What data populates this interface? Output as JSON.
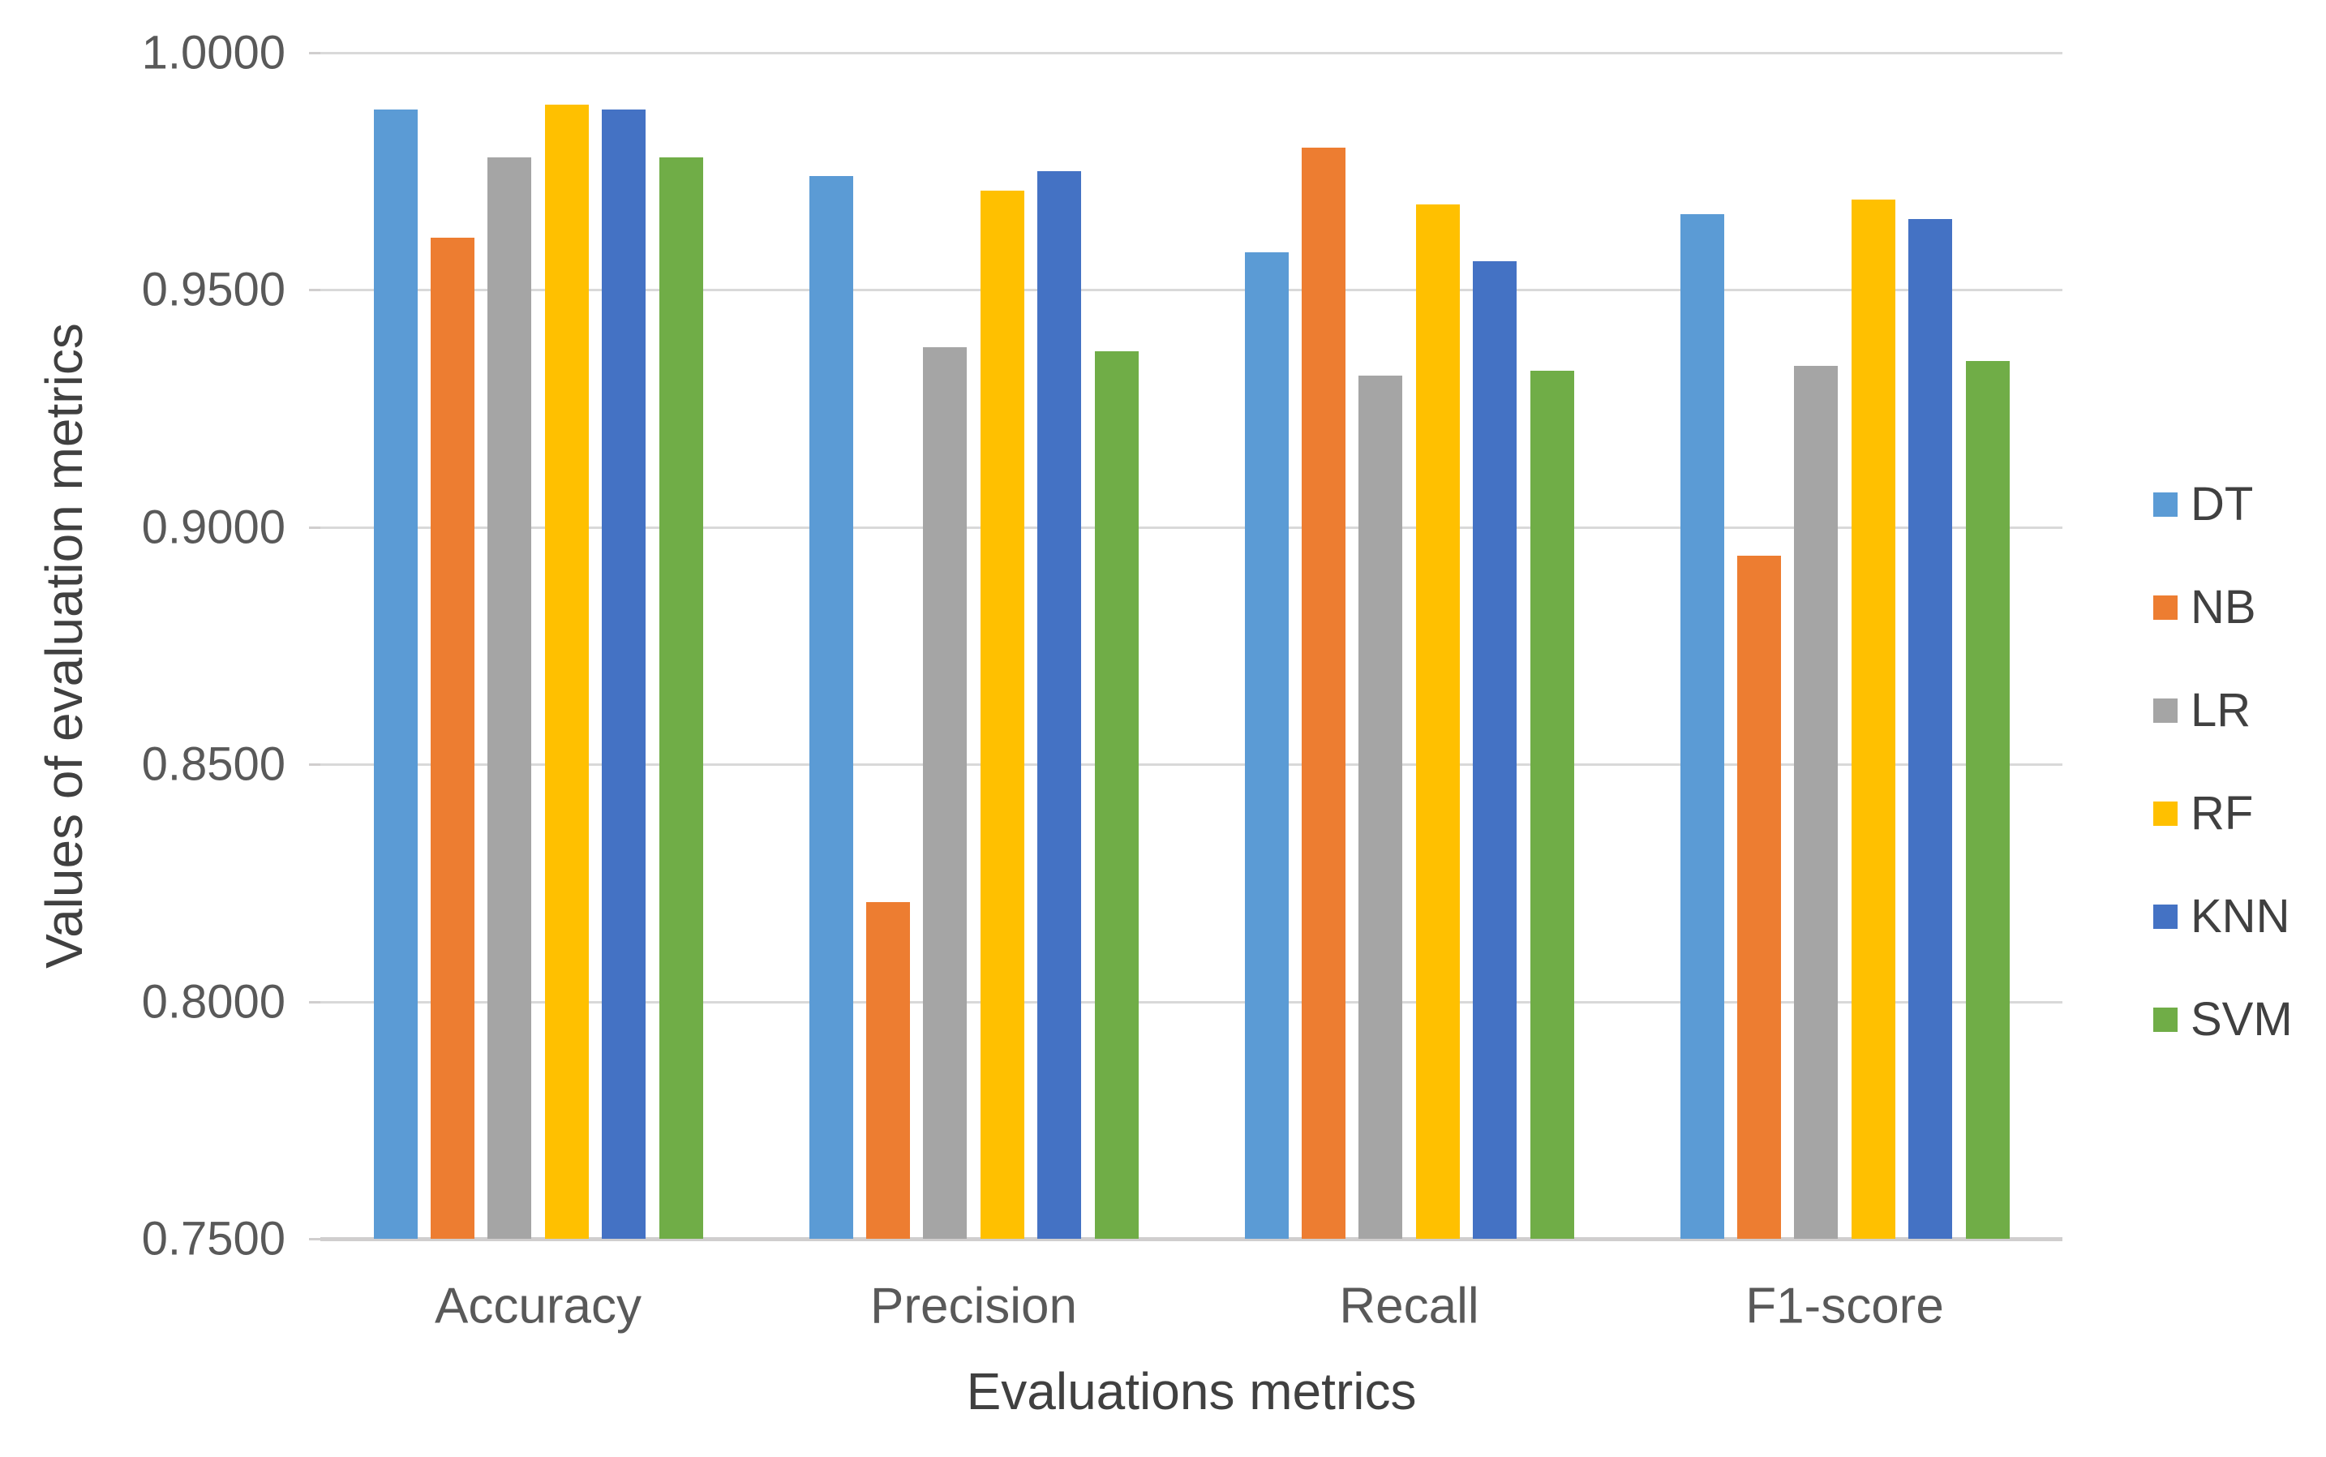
{
  "chart_data": {
    "type": "bar",
    "title": "",
    "xlabel": "Evaluations metrics",
    "ylabel": "Values of evaluation metrics",
    "categories": [
      "Accuracy",
      "Precision",
      "Recall",
      "F1-score"
    ],
    "series": [
      {
        "name": "DT",
        "color": "#5B9BD5",
        "values": [
          0.988,
          0.974,
          0.958,
          0.966
        ]
      },
      {
        "name": "NB",
        "color": "#ED7D31",
        "values": [
          0.961,
          0.821,
          0.98,
          0.894
        ]
      },
      {
        "name": "LR",
        "color": "#A5A5A5",
        "values": [
          0.978,
          0.938,
          0.932,
          0.934
        ]
      },
      {
        "name": "RF",
        "color": "#FFC000",
        "values": [
          0.989,
          0.971,
          0.968,
          0.969
        ]
      },
      {
        "name": "KNN",
        "color": "#4472C4",
        "values": [
          0.988,
          0.975,
          0.956,
          0.965
        ]
      },
      {
        "name": "SVM",
        "color": "#70AD47",
        "values": [
          0.978,
          0.937,
          0.933,
          0.935
        ]
      }
    ],
    "ylim": [
      0.75,
      1.0
    ],
    "ytick_step": 0.05,
    "ytick_labels": [
      "1.0000",
      "0.9500",
      "0.9000",
      "0.8500",
      "0.8000",
      "0.7500"
    ],
    "grid": true,
    "legend_position": "right"
  },
  "colors": {
    "gridline": "#D9D9D9",
    "axis_line": "#D0CECE",
    "tick_text": "#595959",
    "title_text": "#404040",
    "background": "#FFFFFF"
  }
}
